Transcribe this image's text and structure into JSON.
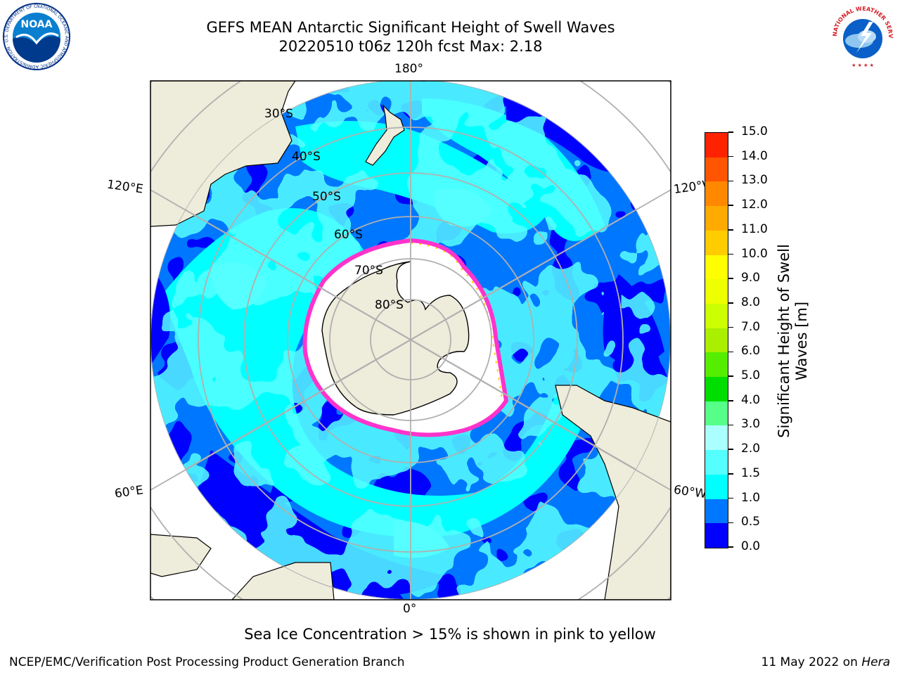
{
  "header": {
    "title_line1": "GEFS MEAN Antarctic Significant Height of Swell Waves",
    "title_line2": "20220510 t06z 120h fcst   Max: 2.18"
  },
  "logos": {
    "noaa_text": "NOAA",
    "noaa_ring": "NATIONAL OCEANIC AND ATMOSPHERIC ADMINISTRATION · U.S. DEPARTMENT OF COMMERCE",
    "nws_ring": "NATIONAL WEATHER SERVICE"
  },
  "map": {
    "projection": "south-polar-stereographic",
    "longitude_labels": {
      "top": "180°",
      "bottom": "0°",
      "left_upper": "120°E",
      "left_lower": "60°E",
      "right_upper": "120°W",
      "right_lower": "60°W"
    },
    "latitude_labels": [
      "30°S",
      "40°S",
      "50°S",
      "60°S",
      "70°S",
      "80°S"
    ],
    "colors": {
      "land": "#eeecda",
      "coast": "#000000",
      "graticule": "#b0b0b0",
      "sea_ice": "#ffffff",
      "ice_edge": "#ff33cc"
    }
  },
  "colorbar": {
    "label": "Significant Height of Swell Waves [m]",
    "ticks": [
      "0.0",
      "0.5",
      "1.0",
      "1.5",
      "2.0",
      "3.0",
      "4.0",
      "5.0",
      "6.0",
      "7.0",
      "8.0",
      "9.0",
      "10.0",
      "11.0",
      "12.0",
      "13.0",
      "14.0",
      "15.0"
    ],
    "colors": [
      "#0000ff",
      "#0077ff",
      "#00ffff",
      "#55ffff",
      "#aaffff",
      "#55ff88",
      "#00dd00",
      "#55ee00",
      "#aaee00",
      "#ccff00",
      "#eeff00",
      "#ffff00",
      "#ffcc00",
      "#ffaa00",
      "#ff8800",
      "#ff5500",
      "#ff2200"
    ]
  },
  "caption": "Sea Ice Concentration > 15% is shown in pink to yellow",
  "footer": {
    "left": "NCEP/EMC/Verification Post Processing Product Generation Branch",
    "right_date": "11 May 2022 on ",
    "right_host": "Hera"
  }
}
